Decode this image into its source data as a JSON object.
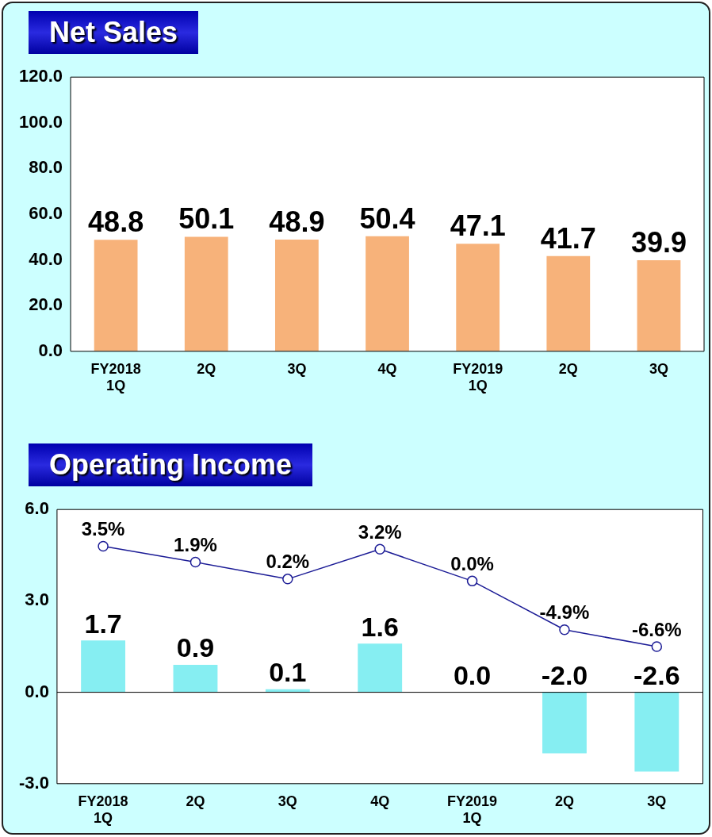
{
  "chart_data": [
    {
      "type": "bar",
      "title": "Net Sales",
      "categories": [
        "FY2018\n1Q",
        "2Q",
        "3Q",
        "4Q",
        "FY2019\n1Q",
        "2Q",
        "3Q"
      ],
      "values": [
        48.8,
        50.1,
        48.9,
        50.4,
        47.1,
        41.7,
        39.9
      ],
      "color": "#f7b27a",
      "ylim": [
        0,
        120
      ],
      "yticks": [
        {
          "value": 0,
          "label": "0.0"
        },
        {
          "value": 20,
          "label": "20.0"
        },
        {
          "value": 40,
          "label": "40.0"
        },
        {
          "value": 60,
          "label": "60.0"
        },
        {
          "value": 80,
          "label": "80.0"
        },
        {
          "value": 100,
          "label": "100.0"
        },
        {
          "value": 120,
          "label": "120.0"
        }
      ],
      "data_labels": true,
      "grid": false,
      "legend": false
    },
    {
      "type": "bar",
      "title": "Operating Income",
      "categories": [
        "FY2018\n1Q",
        "2Q",
        "3Q",
        "4Q",
        "FY2019\n1Q",
        "2Q",
        "3Q"
      ],
      "series": [
        {
          "color": "#86eef2",
          "values": [
            1.7,
            0.9,
            0.1,
            1.6,
            0.0,
            -2.0,
            -2.6
          ],
          "value_labels": [
            "1.7",
            "0.9",
            "0.1",
            "1.6",
            "0.0",
            "-2.0",
            "-2.6"
          ]
        },
        {
          "type": "line",
          "axis": "y2",
          "color": "#1c1c96",
          "values": [
            3.5,
            1.9,
            0.2,
            3.2,
            0.0,
            -4.9,
            -6.6
          ],
          "value_labels": [
            "3.5%",
            "1.9%",
            "0.2%",
            "3.2%",
            "0.0%",
            "-4.9%",
            "-6.6%"
          ]
        }
      ],
      "ylim": [
        -3,
        6
      ],
      "yticks": [
        {
          "value": -3,
          "label": "-3.0"
        },
        {
          "value": 0,
          "label": "0.0"
        },
        {
          "value": 3,
          "label": "3.0"
        },
        {
          "value": 6,
          "label": "6.0"
        }
      ],
      "y2lim": [
        -20.4,
        7.2
      ],
      "ref_lines": [
        {
          "axis": "y",
          "value": 0,
          "color": "#000000"
        }
      ],
      "marker": "circle",
      "grid": false,
      "legend": false
    }
  ]
}
